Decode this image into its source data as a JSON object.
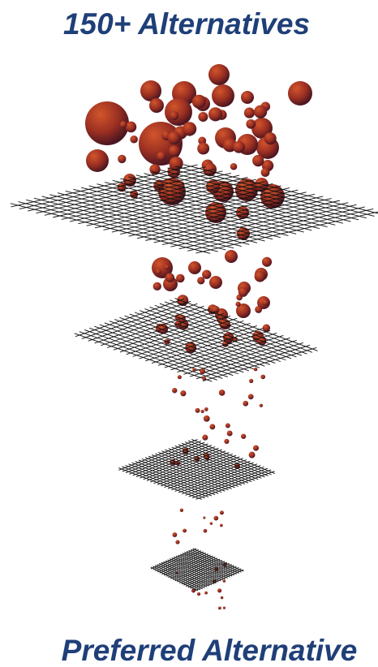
{
  "header": {
    "title": "150+ Alternatives"
  },
  "footer": {
    "title": "Preferred Alternative"
  }
}
